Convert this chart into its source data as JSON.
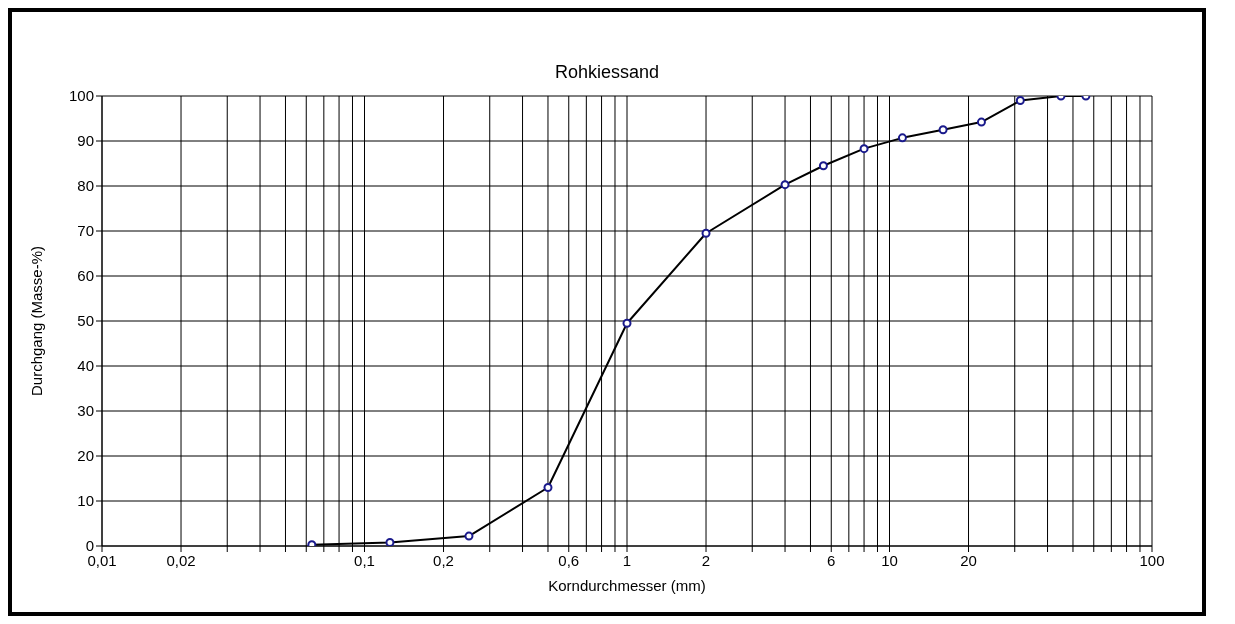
{
  "chart_data": {
    "type": "line",
    "title": "Rohkiessand",
    "xlabel": "Korndurchmesser (mm)",
    "ylabel": "Durchgang (Masse-%)",
    "x": [
      0.063,
      0.125,
      0.25,
      0.5,
      1,
      2,
      4,
      5.6,
      8,
      11.2,
      16,
      22.4,
      31.5,
      45,
      56
    ],
    "series": [
      {
        "color": "#000000",
        "values": [
          0.3,
          0.8,
          2.2,
          13,
          49.5,
          69.5,
          80.3,
          84.5,
          88.3,
          90.7,
          92.5,
          94.2,
          99,
          100,
          100
        ]
      }
    ],
    "log": "x",
    "xlim": [
      0.01,
      100
    ],
    "xticks": [
      {
        "value": 0.01,
        "label": "0,01"
      },
      {
        "value": 0.02,
        "label": "0,02"
      },
      {
        "value": 0.03,
        "label": null
      },
      {
        "value": 0.04,
        "label": null
      },
      {
        "value": 0.05,
        "label": null
      },
      {
        "value": 0.06,
        "label": null
      },
      {
        "value": 0.07,
        "label": null
      },
      {
        "value": 0.08,
        "label": null
      },
      {
        "value": 0.09,
        "label": null
      },
      {
        "value": 0.1,
        "label": "0,1"
      },
      {
        "value": 0.2,
        "label": "0,2"
      },
      {
        "value": 0.3,
        "label": null
      },
      {
        "value": 0.4,
        "label": null
      },
      {
        "value": 0.5,
        "label": null
      },
      {
        "value": 0.6,
        "label": "0,6"
      },
      {
        "value": 0.7,
        "label": null
      },
      {
        "value": 0.8,
        "label": null
      },
      {
        "value": 0.9,
        "label": null
      },
      1,
      2,
      {
        "value": 3,
        "label": null
      },
      {
        "value": 4,
        "label": null
      },
      {
        "value": 5,
        "label": null
      },
      6,
      {
        "value": 7,
        "label": null
      },
      {
        "value": 8,
        "label": null
      },
      {
        "value": 9,
        "label": null
      },
      10,
      20,
      {
        "value": 30,
        "label": null
      },
      {
        "value": 40,
        "label": null
      },
      {
        "value": 50,
        "label": null
      },
      {
        "value": 60,
        "label": null
      },
      {
        "value": 70,
        "label": null
      },
      {
        "value": 80,
        "label": null
      },
      {
        "value": 90,
        "label": null
      },
      100
    ],
    "ylim": [
      0,
      100
    ],
    "yticks": [
      0,
      10,
      20,
      30,
      40,
      50,
      60,
      70,
      80,
      90,
      100
    ],
    "grid": true,
    "marker": "circle"
  }
}
